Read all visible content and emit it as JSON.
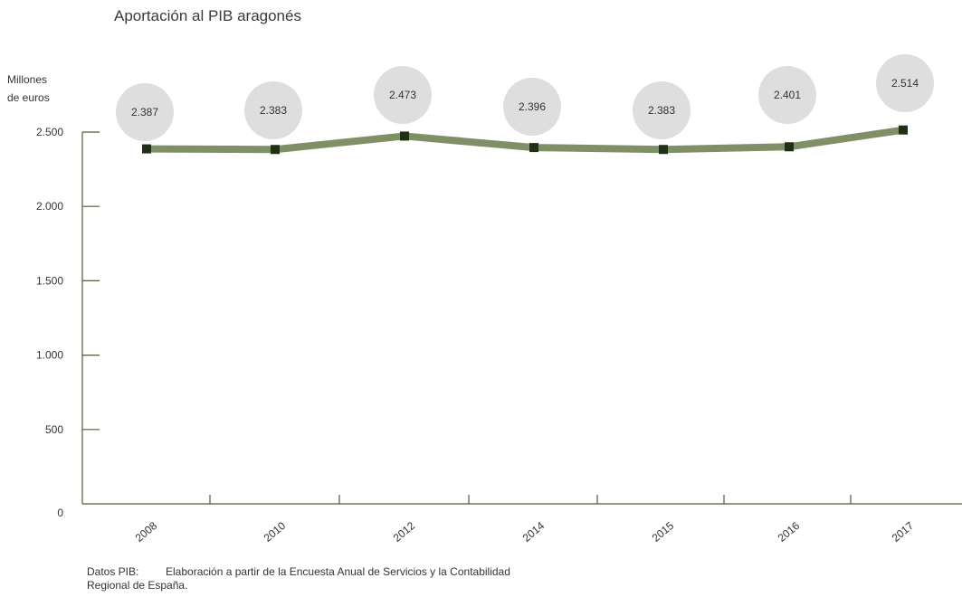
{
  "title": "Aportación al PIB aragonés",
  "source": {
    "prefix": "Datos PIB:",
    "line1": "Elaboración a partir de la Encuesta Anual de Servicios y la Contabilidad",
    "line2": "Regional de España."
  },
  "colors": {
    "line": "#7f9066",
    "marker": "#1f3016",
    "axis": "#4e5b3e",
    "bubble": "#dedede"
  },
  "chart_data": {
    "type": "line",
    "title": "Aportación al PIB aragonés",
    "ylabel": [
      "Millones",
      "de euros"
    ],
    "xlabel": "",
    "categories": [
      "2008",
      "2010",
      "2012",
      "2014",
      "2015",
      "2016",
      "2017"
    ],
    "values": [
      2387,
      2383,
      2473,
      2396,
      2383,
      2401,
      2514
    ],
    "value_labels": [
      "2.387",
      "2.383",
      "2.473",
      "2.396",
      "2.383",
      "2.401",
      "2.514"
    ],
    "ylim": [
      0,
      2500
    ],
    "yticks": [
      0,
      500,
      1000,
      1500,
      2000,
      2500
    ],
    "ytick_labels": [
      "0",
      "500",
      "1.000",
      "1.500",
      "2.000",
      "2.500"
    ],
    "grid": false,
    "legend": "none"
  }
}
